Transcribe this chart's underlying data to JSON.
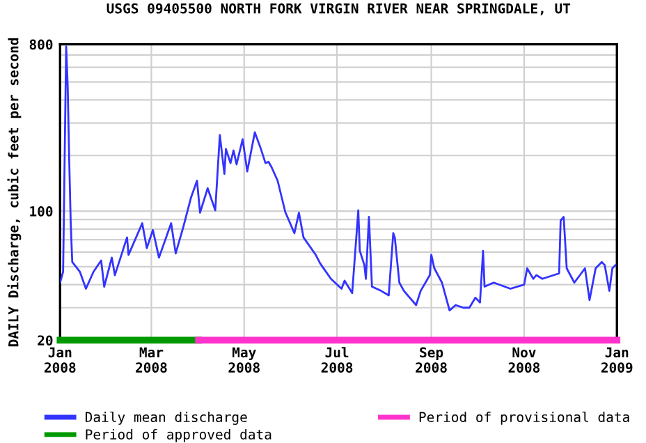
{
  "chart_data": {
    "type": "line",
    "title": "USGS 09405500 NORTH FORK VIRGIN RIVER NEAR SPRINGDALE, UT",
    "ylabel": "DAILY Discharge, cubic feet per second",
    "log": "y",
    "ylim": [
      20,
      800
    ],
    "yticks": [
      20,
      {
        "value": 30,
        "label": null
      },
      {
        "value": 40,
        "label": null
      },
      {
        "value": 50,
        "label": null
      },
      {
        "value": 60,
        "label": null
      },
      {
        "value": 70,
        "label": null
      },
      {
        "value": 80,
        "label": null
      },
      {
        "value": 90,
        "label": null
      },
      100,
      {
        "value": 200,
        "label": null
      },
      {
        "value": 300,
        "label": null
      },
      {
        "value": 400,
        "label": null
      },
      {
        "value": 500,
        "label": null
      },
      {
        "value": 600,
        "label": null
      },
      {
        "value": 700,
        "label": null
      },
      800
    ],
    "xlim": [
      "2008-01-01",
      "2009-01-01"
    ],
    "xticks": [
      {
        "value": "2008-01-01",
        "label": "Jan\n2008"
      },
      {
        "value": "2008-03-01",
        "label": "Mar\n2008"
      },
      {
        "value": "2008-05-01",
        "label": "May\n2008"
      },
      {
        "value": "2008-07-01",
        "label": "Jul\n2008"
      },
      {
        "value": "2008-09-01",
        "label": "Sep\n2008"
      },
      {
        "value": "2008-11-01",
        "label": "Nov\n2008"
      },
      {
        "value": "2009-01-01",
        "label": "Jan\n2009"
      }
    ],
    "grid": true,
    "legend": "bottom",
    "series": [
      {
        "name": "Daily mean discharge",
        "color": "#3333ff",
        "x": [
          "2008-01-01",
          "2008-01-03",
          "2008-01-05",
          "2008-01-06",
          "2008-01-07",
          "2008-01-08",
          "2008-01-09",
          "2008-01-14",
          "2008-01-18",
          "2008-01-23",
          "2008-01-28",
          "2008-01-30",
          "2008-02-04",
          "2008-02-06",
          "2008-02-14",
          "2008-02-15",
          "2008-02-24",
          "2008-02-27",
          "2008-03-02",
          "2008-03-06",
          "2008-03-14",
          "2008-03-17",
          "2008-03-22",
          "2008-03-27",
          "2008-03-31",
          "2008-04-02",
          "2008-04-07",
          "2008-04-12",
          "2008-04-15",
          "2008-04-18",
          "2008-04-19",
          "2008-04-22",
          "2008-04-24",
          "2008-04-26",
          "2008-04-30",
          "2008-05-03",
          "2008-05-08",
          "2008-05-12",
          "2008-05-15",
          "2008-05-17",
          "2008-05-19",
          "2008-05-23",
          "2008-05-28",
          "2008-06-03",
          "2008-06-06",
          "2008-06-09",
          "2008-06-17",
          "2008-06-20",
          "2008-06-27",
          "2008-07-04",
          "2008-07-06",
          "2008-07-11",
          "2008-07-15",
          "2008-07-16",
          "2008-07-19",
          "2008-07-20",
          "2008-07-22",
          "2008-07-24",
          "2008-07-30",
          "2008-08-04",
          "2008-08-07",
          "2008-08-08",
          "2008-08-11",
          "2008-08-14",
          "2008-08-22",
          "2008-08-25",
          "2008-08-31",
          "2008-09-01",
          "2008-09-03",
          "2008-09-08",
          "2008-09-13",
          "2008-09-17",
          "2008-09-22",
          "2008-09-26",
          "2008-09-30",
          "2008-10-03",
          "2008-10-05",
          "2008-10-06",
          "2008-10-12",
          "2008-10-23",
          "2008-11-01",
          "2008-11-03",
          "2008-11-07",
          "2008-11-09",
          "2008-11-13",
          "2008-11-24",
          "2008-11-25",
          "2008-11-27",
          "2008-11-29",
          "2008-12-04",
          "2008-12-11",
          "2008-12-14",
          "2008-12-18",
          "2008-12-22",
          "2008-12-24",
          "2008-12-27",
          "2008-12-29",
          "2008-12-31"
        ],
        "values": [
          41,
          47,
          780,
          475,
          189,
          86,
          53,
          47,
          38,
          47,
          54,
          39,
          56,
          45,
          72,
          58,
          86,
          63,
          79,
          56,
          86,
          59,
          82,
          118,
          146,
          98,
          133,
          101,
          258,
          159,
          217,
          182,
          213,
          179,
          245,
          164,
          267,
          217,
          182,
          185,
          173,
          146,
          99,
          76,
          98,
          72,
          58,
          52,
          43,
          38,
          42,
          36,
          101,
          61,
          51,
          43,
          93,
          39,
          37,
          35,
          76,
          72,
          41,
          37,
          31,
          37,
          45,
          58,
          49,
          41,
          29,
          31,
          30,
          30,
          34,
          32,
          61,
          39,
          41,
          38,
          40,
          49,
          43,
          45,
          43,
          46,
          89,
          93,
          49,
          41,
          49,
          33,
          49,
          53,
          51,
          37,
          49,
          51
        ]
      },
      {
        "name": "Period of approved data",
        "color": "#009900",
        "x": [
          "2008-01-01",
          "2008-04-01"
        ],
        "values": [
          20,
          20
        ]
      },
      {
        "name": "Period of provisional data",
        "color": "#ff33cc",
        "x": [
          "2008-04-01",
          "2009-01-01"
        ],
        "values": [
          20,
          20
        ]
      }
    ]
  }
}
